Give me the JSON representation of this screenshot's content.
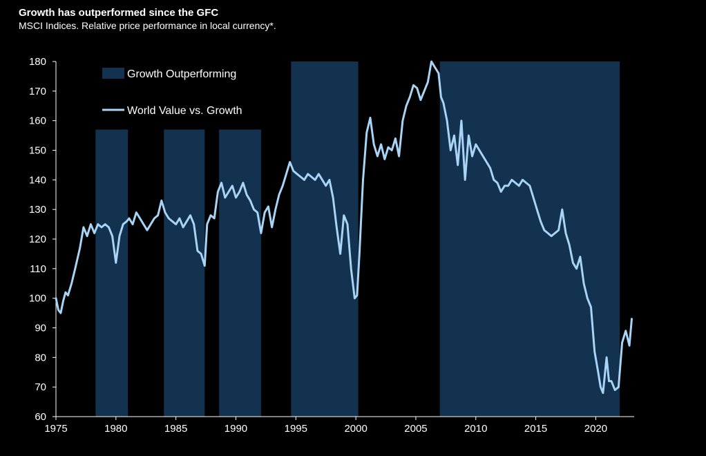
{
  "title": "Growth has outperformed since the GFC",
  "subtitle": "MSCI Indices. Relative price performance in local currency*.",
  "colors": {
    "background": "#000000",
    "band": "#12324f",
    "line": "#a8d4f5",
    "axis": "#ffffff"
  },
  "chart_data": {
    "type": "line",
    "title": "Growth has outperformed since the GFC",
    "xlabel": "",
    "ylabel": "",
    "xlim": [
      1975,
      2023.2
    ],
    "ylim": [
      60,
      180
    ],
    "x_ticks": [
      1975,
      1980,
      1985,
      1990,
      1995,
      2000,
      2005,
      2010,
      2015,
      2020
    ],
    "y_ticks": [
      60,
      70,
      80,
      90,
      100,
      110,
      120,
      130,
      140,
      150,
      160,
      170,
      180
    ],
    "legend": [
      "Growth Outperforming",
      "World Value vs. Growth"
    ],
    "bands": [
      {
        "start": 1978.3,
        "end": 1981.0,
        "top": 157
      },
      {
        "start": 1984.0,
        "end": 1987.4,
        "top": 157
      },
      {
        "start": 1988.6,
        "end": 1992.1,
        "top": 157
      },
      {
        "start": 1994.6,
        "end": 2000.2,
        "top": 180
      },
      {
        "start": 2007.0,
        "end": 2022.0,
        "top": 180
      }
    ],
    "series": [
      {
        "name": "World Value vs. Growth",
        "x": [
          1975.0,
          1975.2,
          1975.4,
          1975.6,
          1975.8,
          1976.0,
          1976.3,
          1976.6,
          1977.0,
          1977.3,
          1977.6,
          1977.9,
          1978.2,
          1978.5,
          1978.8,
          1979.1,
          1979.4,
          1979.7,
          1980.0,
          1980.3,
          1980.6,
          1980.9,
          1981.1,
          1981.4,
          1981.7,
          1982.0,
          1982.3,
          1982.6,
          1982.9,
          1983.2,
          1983.5,
          1983.8,
          1984.1,
          1984.4,
          1984.7,
          1985.0,
          1985.3,
          1985.6,
          1985.9,
          1986.2,
          1986.5,
          1986.8,
          1987.1,
          1987.4,
          1987.6,
          1987.9,
          1988.2,
          1988.5,
          1988.8,
          1989.1,
          1989.4,
          1989.7,
          1990.0,
          1990.3,
          1990.6,
          1990.9,
          1991.2,
          1991.5,
          1991.8,
          1992.1,
          1992.4,
          1992.7,
          1993.0,
          1993.3,
          1993.6,
          1993.9,
          1994.2,
          1994.5,
          1994.8,
          1995.1,
          1995.4,
          1995.7,
          1996.0,
          1996.3,
          1996.6,
          1996.9,
          1997.2,
          1997.5,
          1997.8,
          1998.1,
          1998.4,
          1998.7,
          1999.0,
          1999.3,
          1999.6,
          1999.9,
          2000.1,
          2000.3,
          2000.6,
          2000.9,
          2001.2,
          2001.5,
          2001.8,
          2002.1,
          2002.4,
          2002.7,
          2003.0,
          2003.3,
          2003.6,
          2003.9,
          2004.2,
          2004.5,
          2004.8,
          2005.1,
          2005.4,
          2005.7,
          2006.0,
          2006.3,
          2006.6,
          2006.9,
          2007.1,
          2007.3,
          2007.6,
          2007.9,
          2008.2,
          2008.5,
          2008.8,
          2009.1,
          2009.4,
          2009.7,
          2010.0,
          2010.3,
          2010.6,
          2010.9,
          2011.2,
          2011.5,
          2011.8,
          2012.1,
          2012.4,
          2012.7,
          2013.0,
          2013.3,
          2013.6,
          2013.9,
          2014.2,
          2014.5,
          2014.8,
          2015.1,
          2015.4,
          2015.7,
          2016.0,
          2016.3,
          2016.6,
          2016.9,
          2017.2,
          2017.5,
          2017.8,
          2018.1,
          2018.4,
          2018.7,
          2019.0,
          2019.3,
          2019.6,
          2019.9,
          2020.2,
          2020.4,
          2020.6,
          2020.9,
          2021.1,
          2021.3,
          2021.6,
          2021.9,
          2022.2,
          2022.5,
          2022.8,
          2023.0
        ],
        "values": [
          100,
          96,
          95,
          99,
          102,
          101,
          105,
          110,
          117,
          124,
          121,
          125,
          122,
          125,
          124,
          125,
          124,
          121,
          112,
          121,
          125,
          126,
          127,
          125,
          129,
          127,
          125,
          123,
          125,
          127,
          128,
          133,
          129,
          127,
          126,
          125,
          127,
          124,
          126,
          128,
          125,
          116,
          115,
          111,
          125,
          128,
          127,
          136,
          139,
          134,
          136,
          138,
          134,
          136,
          139,
          135,
          133,
          130,
          129,
          122,
          129,
          131,
          124,
          130,
          135,
          138,
          142,
          146,
          143,
          142,
          141,
          140,
          142,
          141,
          140,
          142,
          140,
          138,
          140,
          134,
          124,
          115,
          128,
          125,
          110,
          100,
          101,
          115,
          140,
          156,
          161,
          152,
          148,
          152,
          147,
          151,
          150,
          154,
          148,
          160,
          165,
          168,
          172,
          171,
          167,
          170,
          173,
          180,
          178,
          176,
          168,
          166,
          160,
          150,
          155,
          145,
          160,
          140,
          155,
          148,
          152,
          150,
          148,
          146,
          144,
          140,
          139,
          136,
          138,
          138,
          140,
          139,
          138,
          140,
          139,
          138,
          134,
          130,
          126,
          123,
          122,
          121,
          122,
          123,
          130,
          122,
          118,
          112,
          110,
          114,
          105,
          100,
          97,
          82,
          75,
          70,
          68,
          80,
          72,
          72,
          69,
          70,
          85,
          89,
          84,
          93
        ]
      }
    ]
  }
}
